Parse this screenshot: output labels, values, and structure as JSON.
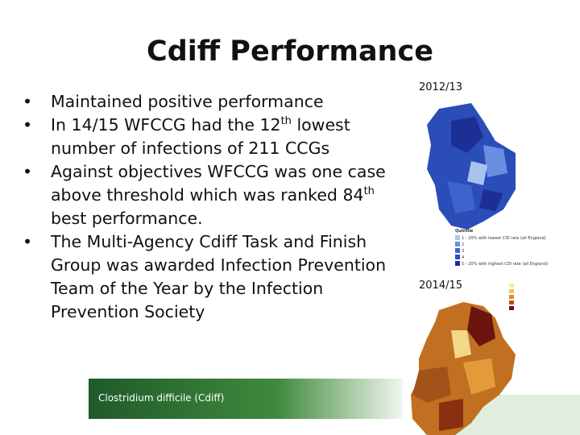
{
  "header": {
    "title": "Cdiff Performance"
  },
  "bullets": [
    [
      {
        "t": "Maintained positive performance"
      }
    ],
    [
      {
        "t": "In 14/15 WFCCG had the 12"
      },
      {
        "sup": "th"
      },
      {
        "t": " lowest number of infections of 211 CCGs"
      }
    ],
    [
      {
        "t": "Against objectives WFCCG was one case above threshold which was ranked 84"
      },
      {
        "sup": "th"
      },
      {
        "t": " best performance."
      }
    ],
    [
      {
        "t": "The Multi-Agency Cdiff Task and Finish Group was awarded Infection Prevention Team of the Year by the Infection Prevention Society"
      }
    ]
  ],
  "footer": "Clostridium difficile (Cdiff)",
  "maps": [
    {
      "label": "2012/13",
      "legend_title": "Quintile",
      "legend": [
        "1 - 20% with lowest CDI rate (all England)",
        "2",
        "3",
        "4",
        "5 - 20% with highest CDI rate (all England)"
      ]
    },
    {
      "label": "2014/15"
    }
  ]
}
